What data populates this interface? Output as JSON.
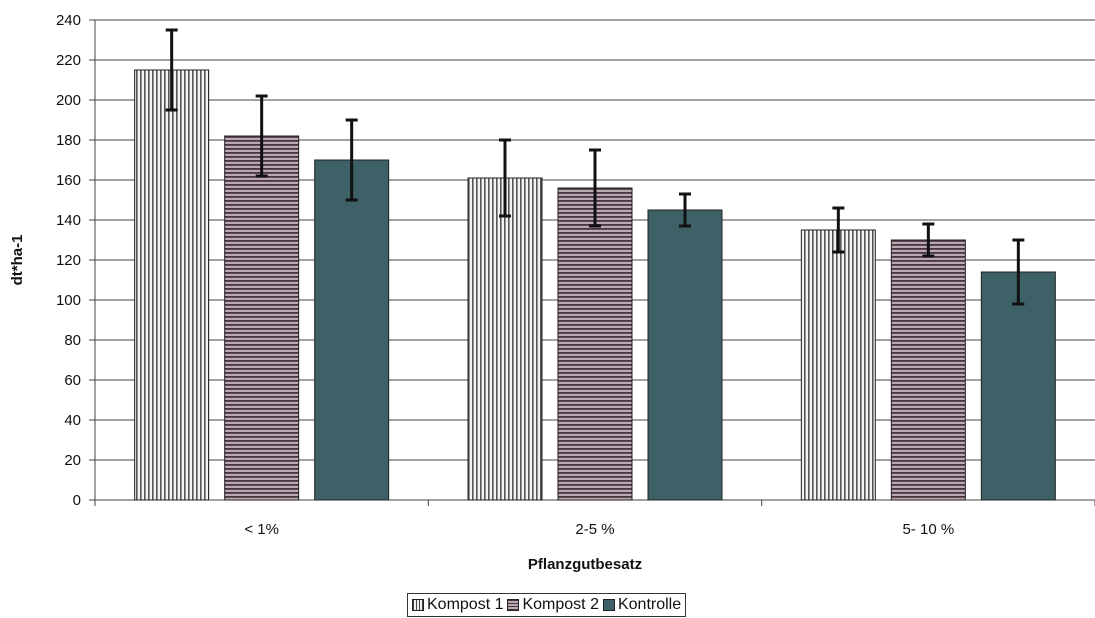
{
  "chart_data": {
    "type": "bar",
    "title": "",
    "xlabel": "Pflanzgutbesatz",
    "ylabel": "dt*ha-1",
    "categories": [
      "< 1%",
      "2-5 %",
      "5- 10 %"
    ],
    "ylim": [
      0,
      240
    ],
    "yticks": [
      0,
      20,
      40,
      60,
      80,
      100,
      120,
      140,
      160,
      180,
      200,
      220,
      240
    ],
    "grid": true,
    "legend_position": "bottom",
    "series": [
      {
        "name": "Kompost 1",
        "pattern": "vertical-lines",
        "color": "#d8d8d8",
        "values": [
          215,
          161,
          135
        ],
        "error": [
          20,
          19,
          11
        ]
      },
      {
        "name": "Kompost 2",
        "pattern": "horizontal-lines",
        "color": "#7a6070",
        "values": [
          182,
          156,
          130
        ],
        "error": [
          20,
          19,
          8
        ]
      },
      {
        "name": "Kontrolle",
        "pattern": "solid",
        "color": "#3d6167",
        "values": [
          170,
          145,
          114
        ],
        "error": [
          20,
          8,
          16
        ]
      }
    ]
  }
}
